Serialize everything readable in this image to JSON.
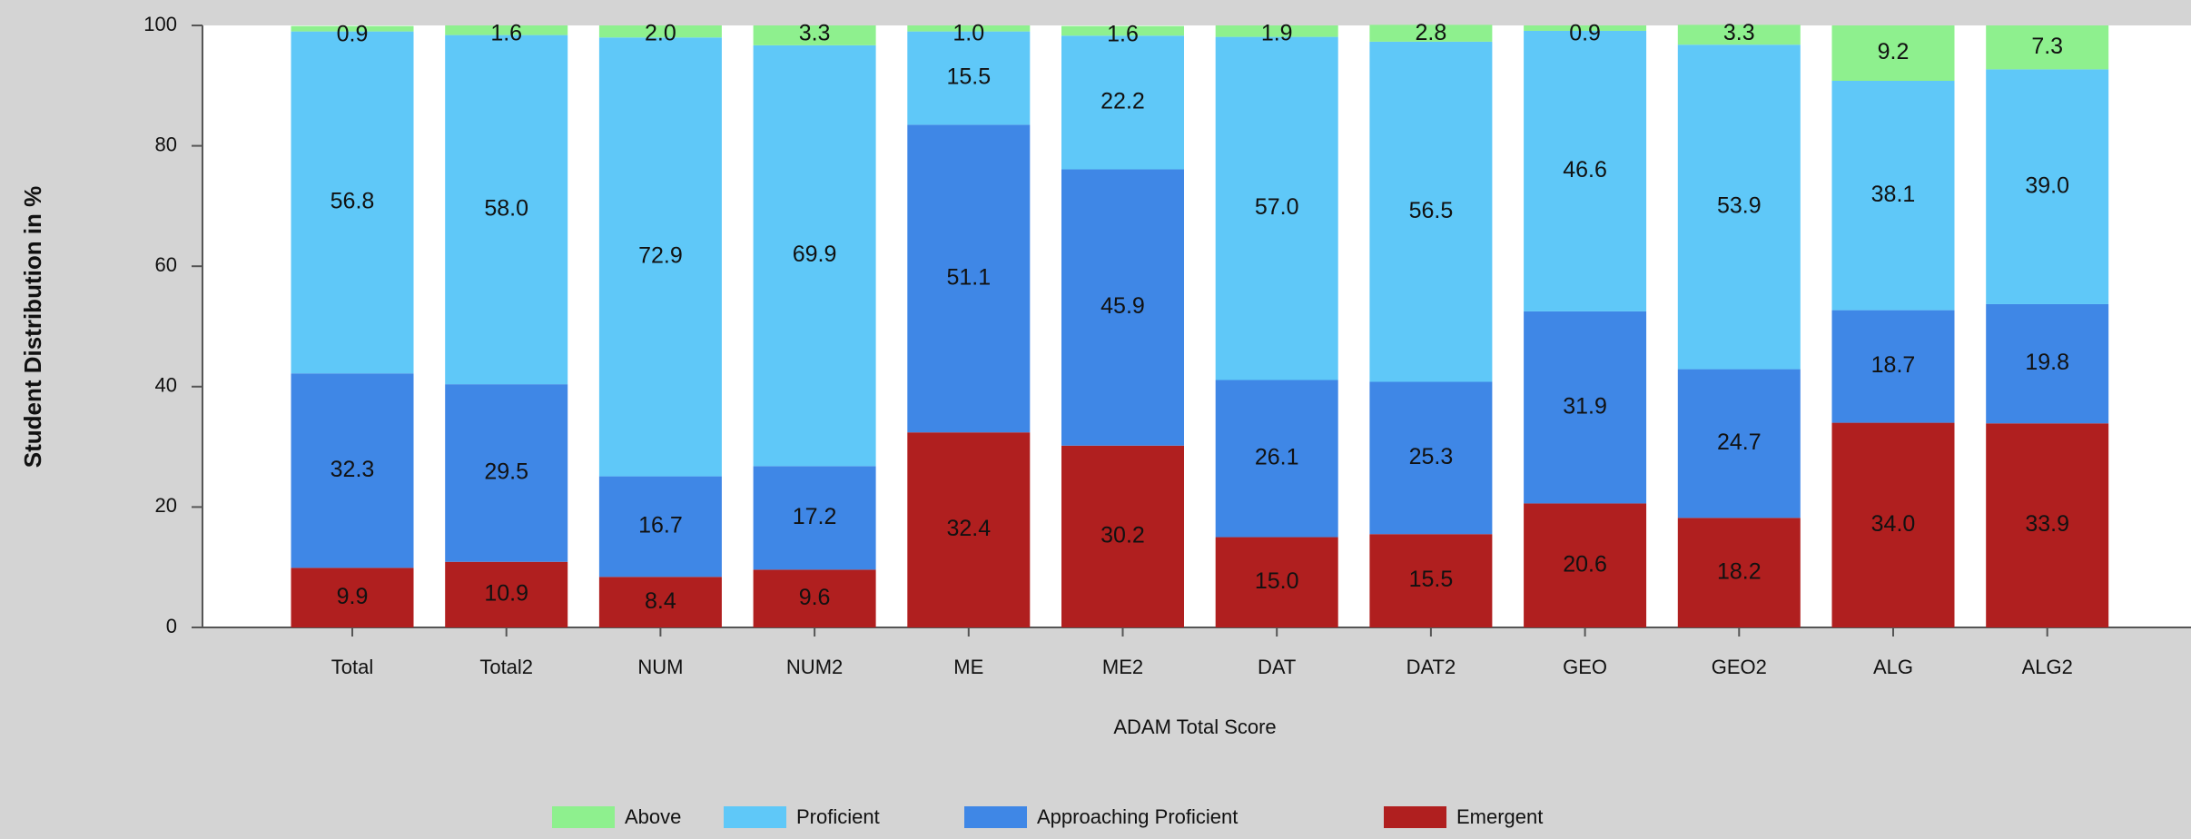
{
  "chart_data": {
    "type": "stacked_bar",
    "x_label": "ADAM Total Score",
    "y_label": "Student Distribution in %",
    "categories": [
      "Total",
      "Total2",
      "NUM",
      "NUM2",
      "ME",
      "ME2",
      "DAT",
      "DAT2",
      "GEO",
      "GEO2",
      "ALG",
      "ALG2"
    ],
    "series": [
      {
        "name": "Emergent",
        "color": "#b01f1f",
        "values": [
          9.9,
          10.9,
          8.4,
          9.6,
          32.4,
          30.2,
          15.0,
          15.5,
          20.6,
          18.2,
          34.0,
          33.9
        ],
        "value_labels": [
          "9.9",
          "10.9",
          "8.4",
          "9.6",
          "32.4",
          "30.2",
          "15.0",
          "15.5",
          "20.6",
          "18.2",
          "34.0",
          "33.9"
        ]
      },
      {
        "name": "Approaching Proficient",
        "color": "#3f87e6",
        "values": [
          32.3,
          29.5,
          16.7,
          17.2,
          51.1,
          45.9,
          26.1,
          25.3,
          31.9,
          24.7,
          18.7,
          19.8
        ],
        "value_labels": [
          "32.3",
          "29.5",
          "16.7",
          "17.2",
          "51.1",
          "45.9",
          "26.1",
          "25.3",
          "31.9",
          "24.7",
          "18.7",
          "19.8"
        ]
      },
      {
        "name": "Proficient",
        "color": "#5fc8f8",
        "values": [
          56.8,
          58.0,
          72.9,
          69.9,
          15.5,
          22.2,
          57.0,
          56.5,
          46.6,
          53.9,
          38.1,
          39.0
        ],
        "value_labels": [
          "56.8",
          "58.0",
          "72.9",
          "69.9",
          "15.5",
          "22.2",
          "57.0",
          "56.5",
          "46.6",
          "53.9",
          "38.1",
          "39.0"
        ]
      },
      {
        "name": "Above",
        "color": "#8ef08e",
        "values": [
          0.9,
          1.6,
          2.0,
          3.3,
          1.0,
          1.6,
          1.9,
          2.8,
          0.9,
          3.3,
          9.2,
          7.3
        ],
        "value_labels": [
          "0.9",
          "1.6",
          "2.0",
          "3.3",
          "1.0",
          "1.6",
          "1.9",
          "2.8",
          "0.9",
          "3.3",
          "9.2",
          "7.3"
        ]
      }
    ],
    "legend_order": [
      3,
      2,
      1,
      0
    ],
    "ylim": [
      0,
      100
    ],
    "yticks": [
      0,
      20,
      40,
      60,
      80,
      100
    ],
    "grid": false
  }
}
